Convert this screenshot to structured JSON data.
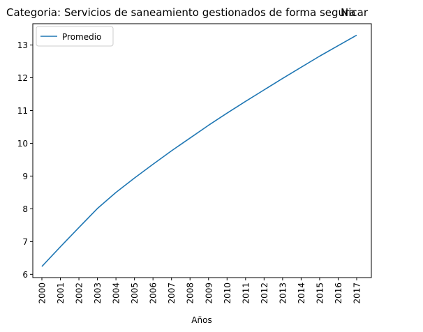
{
  "chart_data": {
    "type": "line",
    "title_left": "Categoria: Servicios de saneamiento gestionados de forma segura",
    "title_right": "Nicar",
    "xlabel": "Años",
    "ylabel": "",
    "x": [
      "2000",
      "2001",
      "2002",
      "2003",
      "2004",
      "2005",
      "2006",
      "2007",
      "2008",
      "2009",
      "2010",
      "2011",
      "2012",
      "2013",
      "2014",
      "2015",
      "2016",
      "2017"
    ],
    "series": [
      {
        "name": "Promedio",
        "color": "#1f77b4",
        "values": [
          6.24,
          6.84,
          7.43,
          8.01,
          8.5,
          8.94,
          9.36,
          9.77,
          10.16,
          10.55,
          10.92,
          11.28,
          11.63,
          11.98,
          12.32,
          12.66,
          12.98,
          13.3
        ]
      }
    ],
    "yticks": [
      6,
      7,
      8,
      9,
      10,
      11,
      12,
      13
    ],
    "ylim": [
      5.9,
      13.65
    ],
    "grid": false,
    "legend_position": "top-left"
  }
}
